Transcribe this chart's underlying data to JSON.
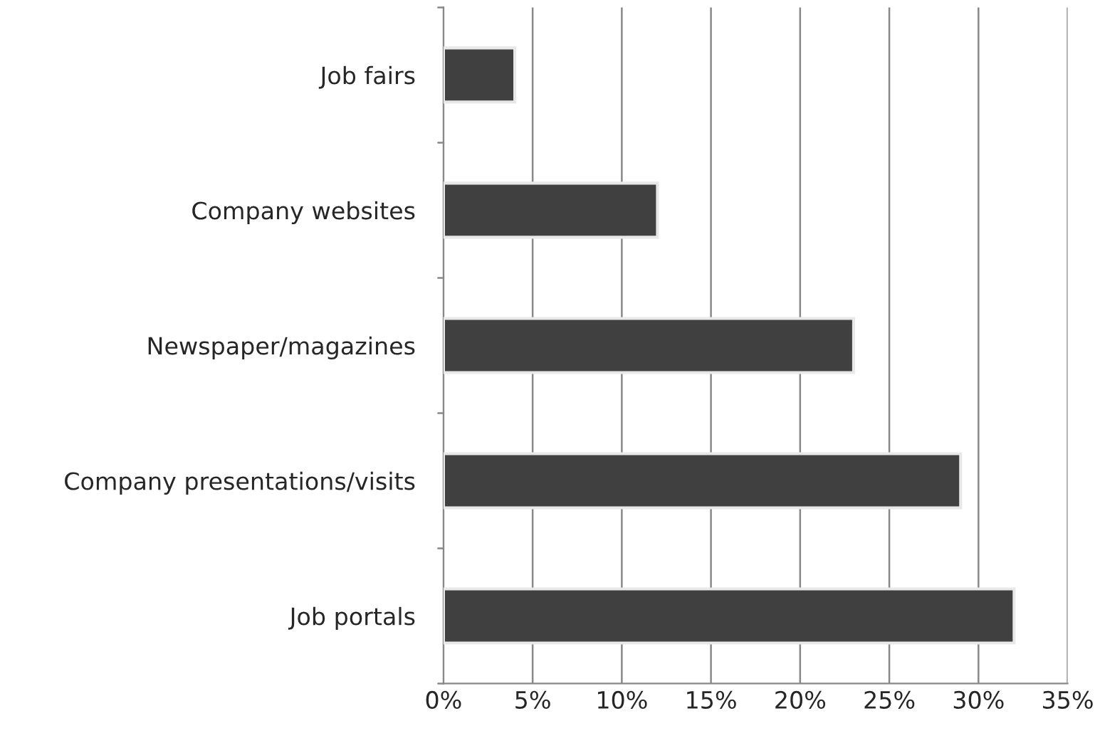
{
  "chart_data": {
    "type": "bar",
    "orientation": "horizontal",
    "categories": [
      "Job fairs",
      "Company websites",
      "Newspaper/magazines",
      "Company presentations/visits",
      "Job portals"
    ],
    "values": [
      4,
      12,
      23,
      29,
      32
    ],
    "color": "#404040",
    "xlim": [
      0,
      35
    ],
    "xticks": [
      {
        "value": 0,
        "label": "0%"
      },
      {
        "value": 5,
        "label": "5%"
      },
      {
        "value": 10,
        "label": "10%"
      },
      {
        "value": 15,
        "label": "15%"
      },
      {
        "value": 20,
        "label": "20%"
      },
      {
        "value": 25,
        "label": "25%"
      },
      {
        "value": 30,
        "label": "30%"
      },
      {
        "value": 35,
        "label": "35%"
      }
    ],
    "grid": "x"
  }
}
